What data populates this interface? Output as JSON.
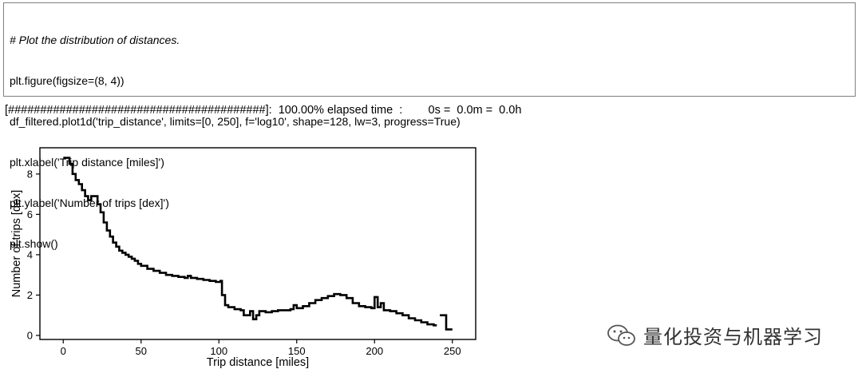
{
  "cell": {
    "code_lines": [
      "# Plot the distribution of distances.",
      "plt.figure(figsize=(8, 4))",
      "df_filtered.plot1d('trip_distance', limits=[0, 250], f='log10', shape=128, lw=3, progress=True)",
      "plt.xlabel('Trip distance [miles]')",
      "plt.ylabel('Number of trips [dex]')",
      "plt.show()"
    ]
  },
  "output": {
    "progress_text": "[########################################]:  100.00% elapsed time  :        0s =  0.0m =  0.0h"
  },
  "chart_data": {
    "type": "line",
    "title": "",
    "xlabel": "Trip distance [miles]",
    "ylabel": "Number of trips [dex]",
    "xlim": [
      -15,
      265
    ],
    "ylim": [
      -0.2,
      9.3
    ],
    "xticks": [
      0,
      50,
      100,
      150,
      200,
      250
    ],
    "yticks": [
      0,
      2,
      4,
      6,
      8
    ],
    "grid": false,
    "drawstyle": "steps",
    "series": [
      {
        "color": "#000000",
        "x": [
          0,
          2,
          4,
          6,
          8,
          10,
          12,
          14,
          16,
          18,
          20,
          22,
          24,
          26,
          28,
          30,
          32,
          34,
          36,
          38,
          40,
          42,
          44,
          46,
          48,
          50,
          54,
          58,
          62,
          66,
          70,
          74,
          78,
          80,
          82,
          86,
          90,
          94,
          98,
          101,
          102,
          104,
          106,
          110,
          114,
          116,
          120,
          122,
          124,
          126,
          130,
          134,
          138,
          142,
          146,
          148,
          150,
          154,
          158,
          162,
          166,
          170,
          174,
          178,
          182,
          186,
          190,
          194,
          198,
          200,
          202,
          204,
          206,
          210,
          214,
          218,
          222,
          226,
          230,
          234,
          238,
          240,
          242,
          246,
          250
        ],
        "y": [
          8.8,
          8.8,
          8.5,
          8.0,
          7.7,
          7.5,
          7.2,
          6.9,
          6.7,
          6.9,
          6.9,
          6.5,
          6.1,
          5.6,
          5.2,
          4.9,
          4.6,
          4.4,
          4.2,
          4.1,
          4.0,
          3.9,
          3.8,
          3.7,
          3.55,
          3.45,
          3.3,
          3.2,
          3.1,
          3.0,
          2.95,
          2.9,
          2.85,
          2.95,
          2.85,
          2.8,
          2.75,
          2.7,
          2.65,
          2.7,
          2.0,
          1.5,
          1.4,
          1.3,
          1.25,
          1.0,
          1.2,
          0.8,
          1.0,
          1.2,
          1.15,
          1.2,
          1.25,
          1.25,
          1.3,
          1.5,
          1.35,
          1.45,
          1.6,
          1.75,
          1.85,
          1.95,
          2.05,
          2.0,
          1.85,
          1.6,
          1.45,
          1.4,
          1.35,
          1.9,
          1.4,
          1.6,
          1.25,
          1.2,
          1.1,
          1.0,
          0.85,
          0.75,
          0.65,
          0.55,
          0.5,
          null,
          1.0,
          0.3,
          0.3
        ]
      }
    ]
  },
  "watermark": {
    "icon": "wechat-icon",
    "text": "量化投资与机器学习"
  }
}
